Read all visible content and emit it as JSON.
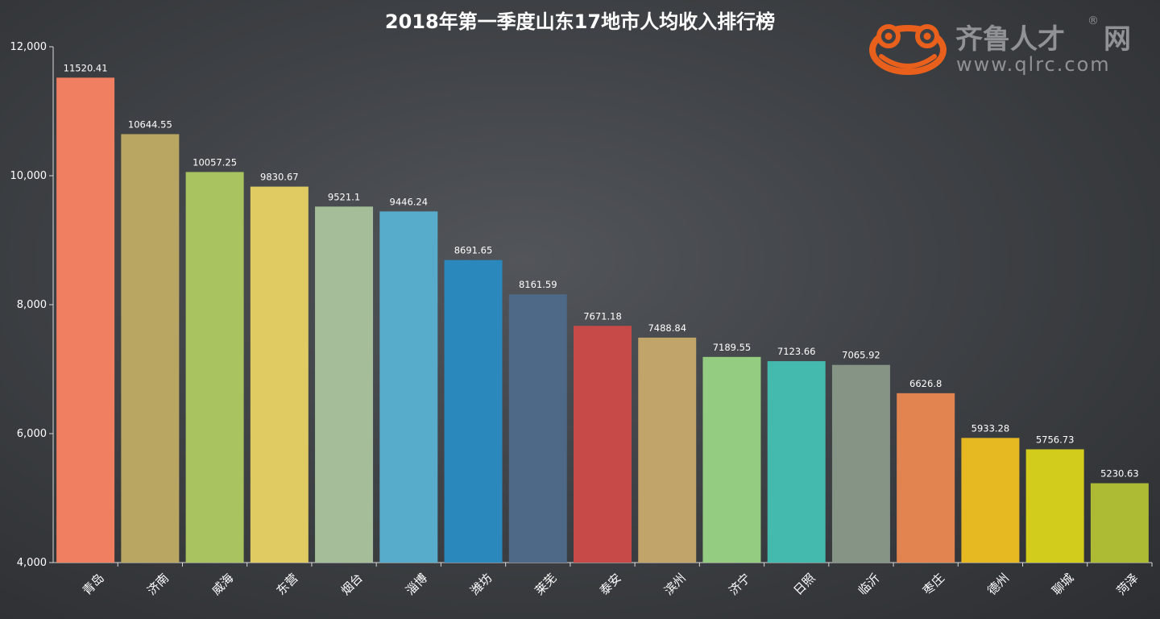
{
  "chart_data": {
    "type": "bar",
    "title": "2018年第一季度山东17地市人均收入排行榜",
    "categories": [
      "青岛",
      "济南",
      "威海",
      "东营",
      "烟台",
      "淄博",
      "潍坊",
      "莱芜",
      "泰安",
      "滨州",
      "济宁",
      "日照",
      "临沂",
      "枣庄",
      "德州",
      "聊城",
      "菏泽"
    ],
    "values": [
      11520.41,
      10644.55,
      10057.25,
      9830.67,
      9521.1,
      9446.24,
      8691.65,
      8161.59,
      7671.18,
      7488.84,
      7189.55,
      7123.66,
      7065.92,
      6626.8,
      5933.28,
      5756.73,
      5230.63
    ],
    "value_labels": [
      "11520.41",
      "10644.55",
      "10057.25",
      "9830.67",
      "9521.1",
      "9446.24",
      "8691.65",
      "8161.59",
      "7671.18",
      "7488.84",
      "7189.55",
      "7123.66",
      "7065.92",
      "6626.8",
      "5933.28",
      "5756.73",
      "5230.63"
    ],
    "colors": [
      "#f07f62",
      "#b8a662",
      "#aac361",
      "#e0cb62",
      "#a5bd98",
      "#57abcb",
      "#2b88bd",
      "#4e6888",
      "#c74a49",
      "#c0a46a",
      "#94cd82",
      "#44b9ae",
      "#869486",
      "#e2844f",
      "#e6b922",
      "#d2cc1c",
      "#acbb33"
    ],
    "ylim": [
      4000,
      12000
    ],
    "yticks": [
      4000,
      6000,
      8000,
      10000,
      12000
    ],
    "ytick_labels": [
      "4,000",
      "6,000",
      "8,000",
      "10,000",
      "12,000"
    ],
    "xlabel": "",
    "ylabel": "",
    "grid": false,
    "legend": "none"
  },
  "watermark": {
    "brand": "齐鲁人才",
    "suffix": "网",
    "url": "www.qlrc.com",
    "registered": "®",
    "logo_icon": "frog-icon",
    "logo_color": "#e8601c"
  }
}
